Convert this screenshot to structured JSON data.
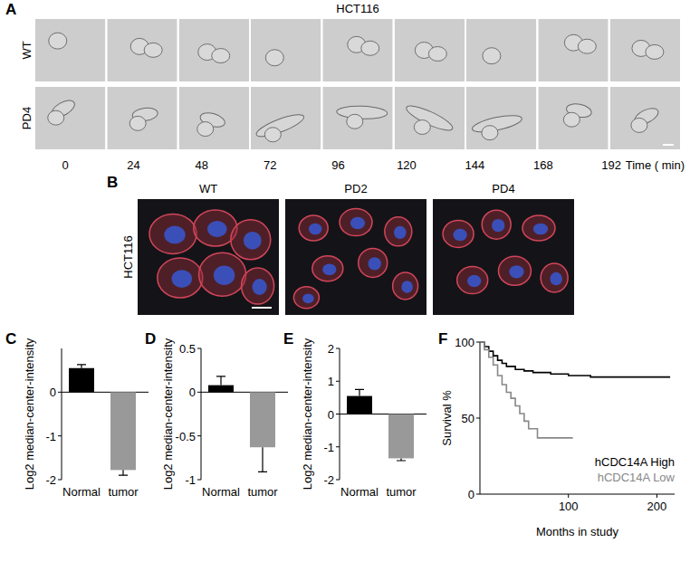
{
  "figure": {
    "panel_labels": [
      "A",
      "B",
      "C",
      "D",
      "E",
      "F"
    ]
  },
  "panel_a": {
    "title": "HCT116",
    "rows": [
      "WT",
      "PD4"
    ],
    "times": [
      0,
      24,
      48,
      72,
      96,
      120,
      144,
      168,
      192
    ],
    "time_label": "Time ( min)"
  },
  "panel_b": {
    "row_label": "HCT116",
    "columns": [
      "WT",
      "PD2",
      "PD4"
    ]
  },
  "chart_data": [
    {
      "type": "bar",
      "categories": [
        "Normal",
        "tumor"
      ],
      "values": [
        0.55,
        -1.78
      ],
      "errors": [
        0.08,
        0.12
      ],
      "colors": [
        "#000000",
        "#999999"
      ],
      "ylim": [
        -2,
        1
      ],
      "yticks": [
        -2,
        -1,
        0
      ],
      "y_label": "Log2 median-center-intensity"
    },
    {
      "type": "bar",
      "categories": [
        "Normal",
        "tumor"
      ],
      "values": [
        0.08,
        -0.63
      ],
      "errors": [
        0.1,
        0.28
      ],
      "colors": [
        "#000000",
        "#999999"
      ],
      "ylim": [
        -1,
        0.5
      ],
      "yticks": [
        -1,
        -0.5,
        0,
        0.5
      ],
      "y_label": "Log2 median-center-intensity"
    },
    {
      "type": "bar",
      "categories": [
        "Normal",
        "tumor"
      ],
      "values": [
        0.55,
        -1.35
      ],
      "errors": [
        0.2,
        0.07
      ],
      "colors": [
        "#000000",
        "#999999"
      ],
      "ylim": [
        -2,
        2
      ],
      "yticks": [
        -2,
        -1,
        0,
        1,
        2
      ],
      "y_label": "Log2 median-center-intensity"
    },
    {
      "type": "line",
      "line_style": "step",
      "legend": "lower right",
      "x_label": "Months in study",
      "y_label": "Survival %",
      "xlim": [
        0,
        220
      ],
      "xticks": [
        100,
        200
      ],
      "ylim": [
        0,
        100
      ],
      "yticks": [
        0,
        50,
        100
      ],
      "series": [
        {
          "name": "hCDC14A High",
          "color": "#000000",
          "x": [
            0,
            5,
            10,
            15,
            20,
            25,
            30,
            40,
            50,
            60,
            80,
            100,
            125,
            150,
            215
          ],
          "values": [
            100,
            97,
            94,
            91,
            88,
            86,
            84,
            82,
            81,
            80,
            79,
            78,
            77,
            77,
            77
          ]
        },
        {
          "name": "hCDC14A Low",
          "color": "#888888",
          "x": [
            0,
            5,
            10,
            15,
            20,
            25,
            30,
            35,
            40,
            45,
            50,
            55,
            65,
            75,
            105
          ],
          "values": [
            100,
            95,
            90,
            85,
            78,
            72,
            67,
            63,
            58,
            53,
            48,
            43,
            37,
            37,
            37
          ]
        }
      ]
    }
  ]
}
